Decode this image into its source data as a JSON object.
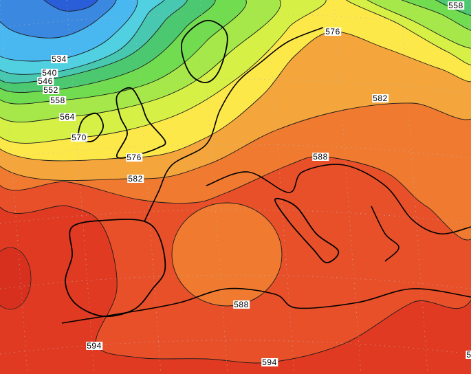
{
  "map": {
    "type": "geopotential height contour map",
    "region": "Europe / North Africa",
    "band_colors": {
      "below_522": "#2a5ed8",
      "522_528": "#3a88e0",
      "528_534": "#4ab8f0",
      "534_540": "#50d0e0",
      "540_546": "#48c8b0",
      "546_552": "#4cc870",
      "552_558": "#72dc50",
      "558_564": "#a6e84a",
      "564_570": "#d6f046",
      "570_576": "#fde84a",
      "576_582": "#f4a63c",
      "582_588": "#ef7a30",
      "588_594": "#e8502a",
      "above_594": "#e03a22"
    },
    "contour_labels": [
      "534",
      "540",
      "546",
      "552",
      "558",
      "564",
      "570",
      "576",
      "582",
      "576",
      "582",
      "588",
      "558",
      "588",
      "594",
      "594",
      "5"
    ]
  }
}
